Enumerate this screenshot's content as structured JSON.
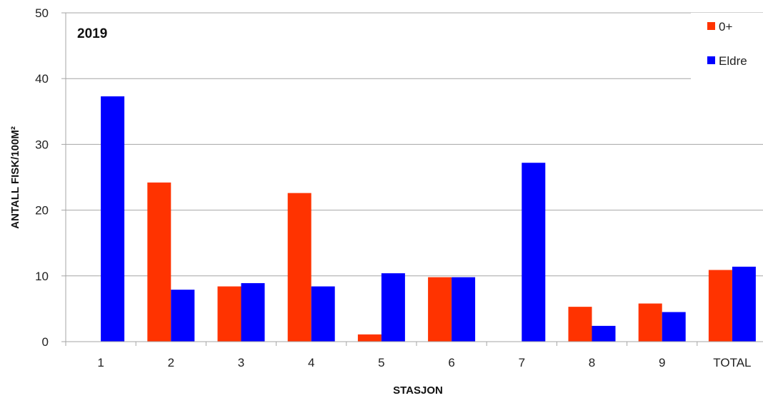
{
  "chart_data": {
    "type": "bar",
    "title": "2019",
    "xlabel": "STASJON",
    "ylabel": "ANTALL FISK/100M²",
    "ylim": [
      0,
      50
    ],
    "yticks": [
      0,
      10,
      20,
      30,
      40,
      50
    ],
    "grid": true,
    "legend_position": "top-right",
    "categories": [
      "1",
      "2",
      "3",
      "4",
      "5",
      "6",
      "7",
      "8",
      "9",
      "TOTAL"
    ],
    "series": [
      {
        "name": "0+",
        "color": "#ff3300",
        "values": [
          0,
          24.2,
          8.4,
          22.6,
          1.1,
          9.8,
          0,
          5.3,
          5.8,
          10.9
        ]
      },
      {
        "name": "Eldre",
        "color": "#0000ff",
        "values": [
          37.3,
          7.9,
          8.9,
          8.4,
          10.4,
          9.8,
          27.2,
          2.4,
          4.5,
          11.4
        ]
      }
    ]
  }
}
